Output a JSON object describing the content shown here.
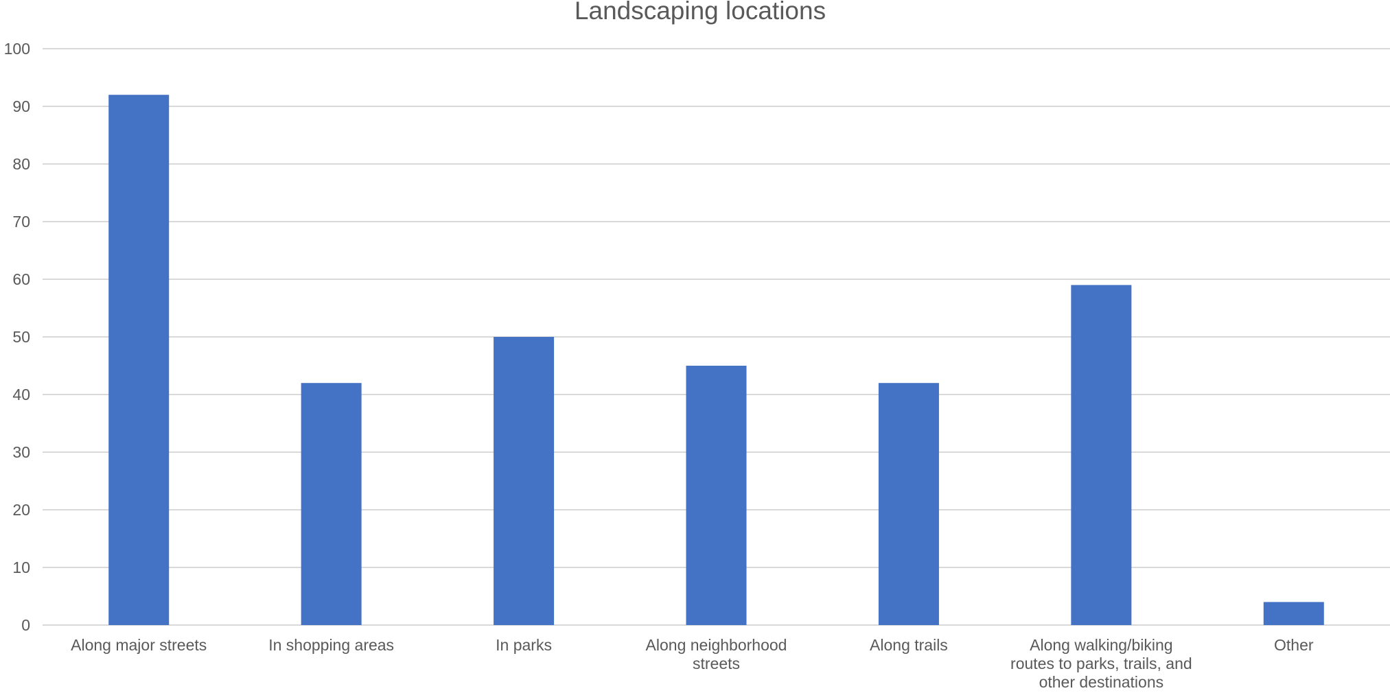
{
  "chart_data": {
    "type": "bar",
    "title": "Landscaping locations",
    "xlabel": "",
    "ylabel": "",
    "ylim": [
      0,
      100
    ],
    "yticks": [
      0,
      10,
      20,
      30,
      40,
      50,
      60,
      70,
      80,
      90,
      100
    ],
    "grid": true,
    "legend": "none",
    "bar_color": "#4472c4",
    "categories": [
      [
        "Along major streets"
      ],
      [
        "In shopping areas"
      ],
      [
        "In parks"
      ],
      [
        "Along neighborhood",
        "streets"
      ],
      [
        "Along trails"
      ],
      [
        "Along walking/biking",
        "routes to parks, trails, and",
        "other destinations"
      ],
      [
        "Other"
      ]
    ],
    "values": [
      92,
      42,
      50,
      45,
      42,
      59,
      4
    ]
  }
}
